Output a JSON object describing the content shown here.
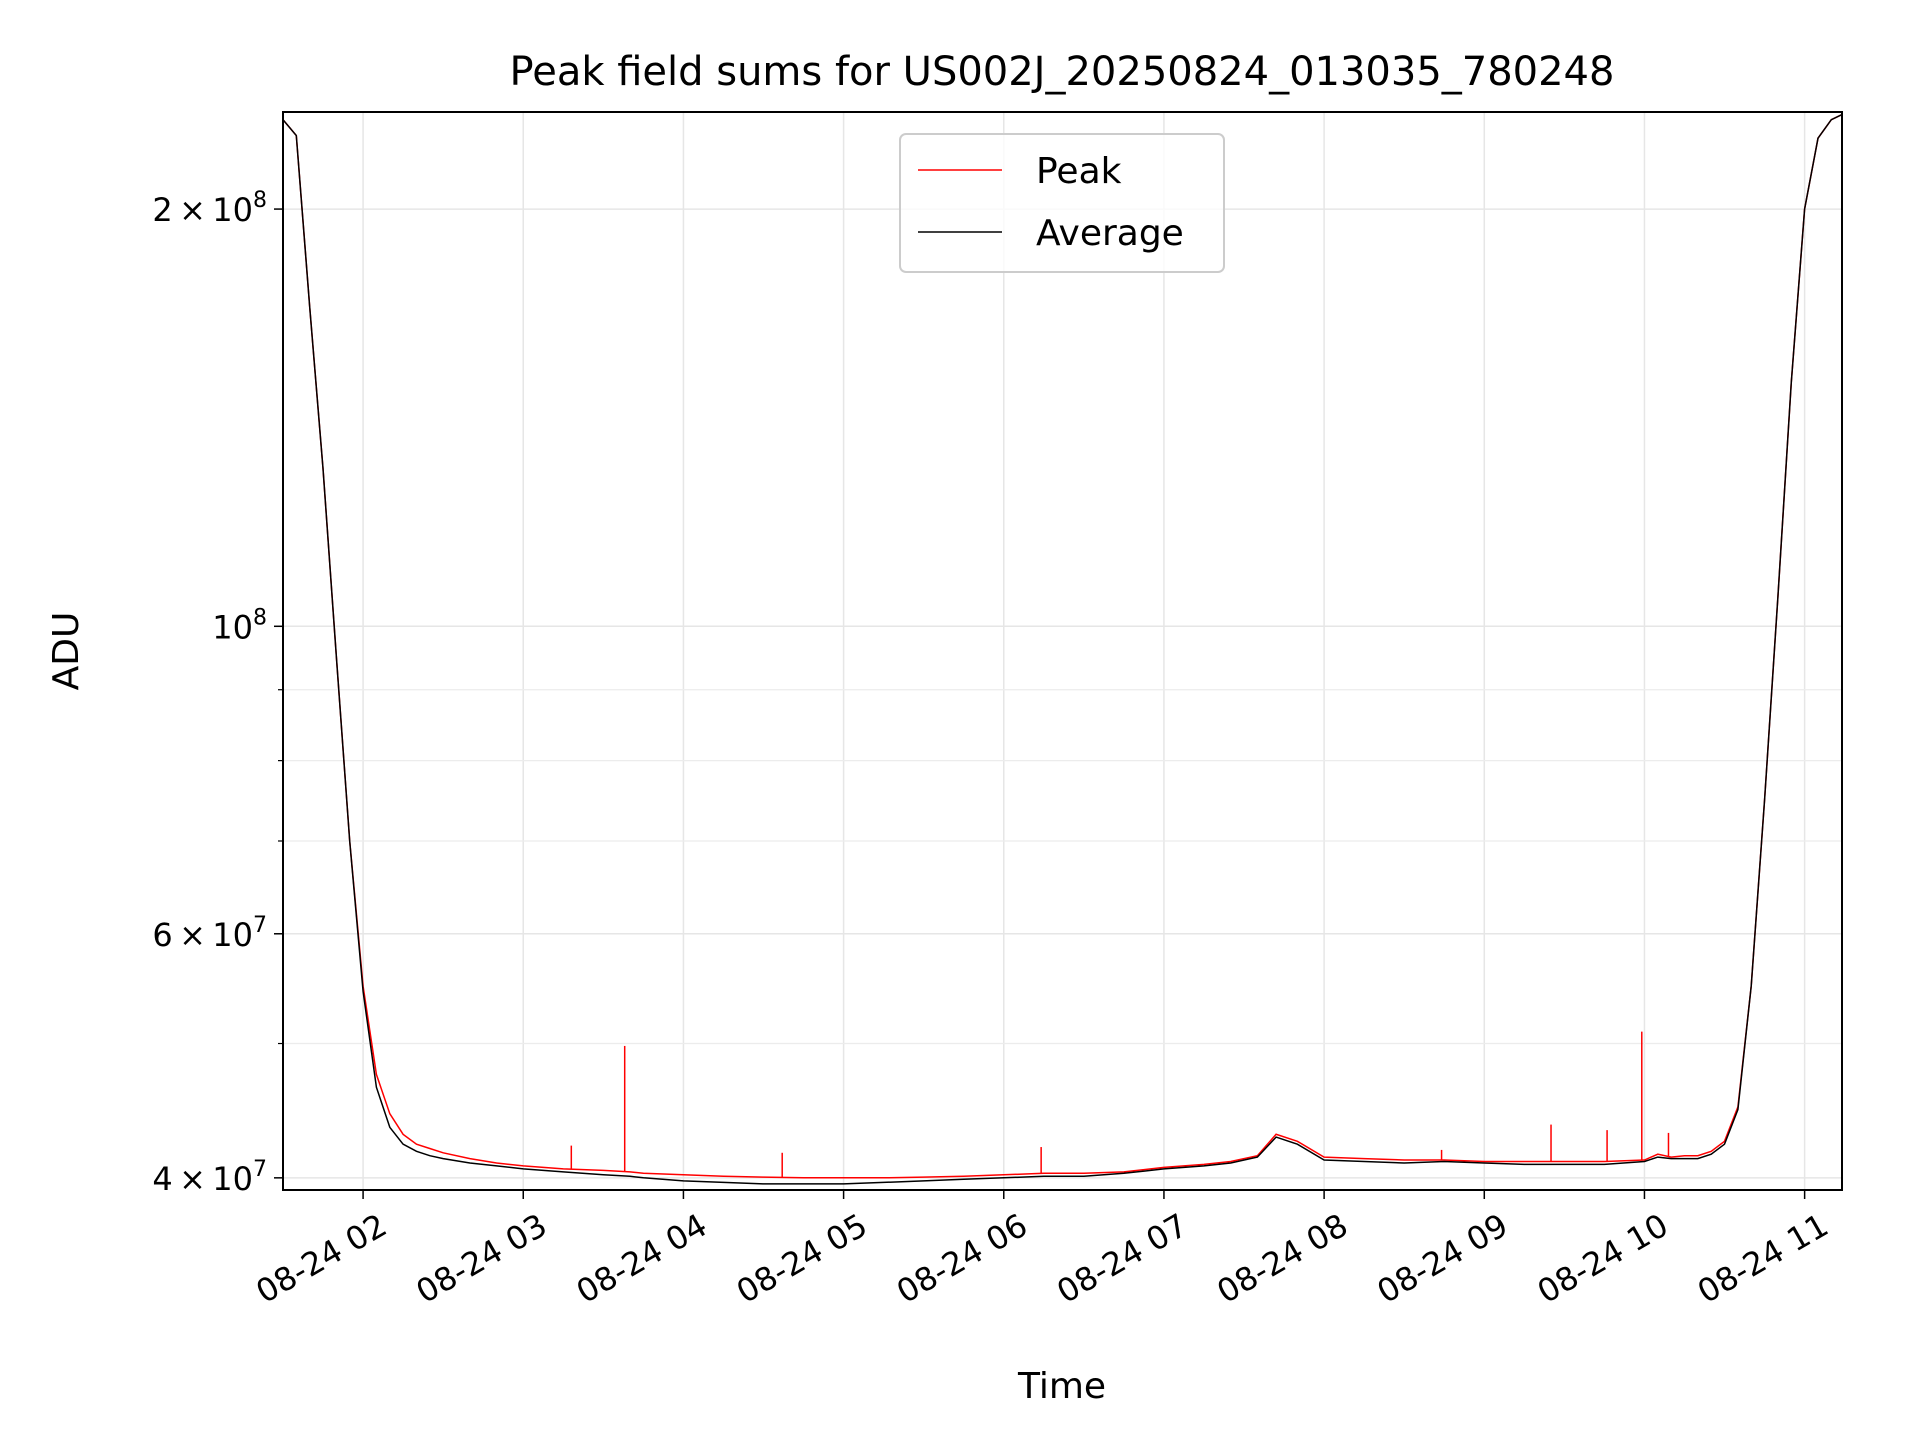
{
  "chart_data": {
    "type": "line",
    "title": "Peak field sums for US002J_20250824_013035_780248",
    "xlabel": "Time",
    "ylabel": "ADU",
    "y_scale": "log",
    "ylim": [
      39200000,
      235000000
    ],
    "xlim": [
      "2025-08-24 01:30",
      "2025-08-24 11:14"
    ],
    "grid": true,
    "legend_position": "upper center",
    "x_tick_labels": [
      "08-24 02",
      "08-24 03",
      "08-24 04",
      "08-24 05",
      "08-24 06",
      "08-24 07",
      "08-24 08",
      "08-24 09",
      "08-24 10",
      "08-24 11"
    ],
    "x_tick_values": [
      "2025-08-24 02:00",
      "2025-08-24 03:00",
      "2025-08-24 04:00",
      "2025-08-24 05:00",
      "2025-08-24 06:00",
      "2025-08-24 07:00",
      "2025-08-24 08:00",
      "2025-08-24 09:00",
      "2025-08-24 10:00",
      "2025-08-24 11:00"
    ],
    "y_ticks": [
      {
        "value": 200000000,
        "mantissa": "2",
        "times": "×",
        "base": "10",
        "exp": "8"
      },
      {
        "value": 100000000,
        "mantissa": "",
        "times": "",
        "base": "10",
        "exp": "8"
      },
      {
        "value": 60000000,
        "mantissa": "6",
        "times": "×",
        "base": "10",
        "exp": "7"
      },
      {
        "value": 40000000,
        "mantissa": "4",
        "times": "×",
        "base": "10",
        "exp": "7"
      }
    ],
    "y_minor_ticks": [
      50000000,
      70000000,
      80000000,
      90000000
    ],
    "series": [
      {
        "name": "Peak",
        "color": "#ff0000",
        "x": [
          "2025-08-24 01:30",
          "2025-08-24 01:35",
          "2025-08-24 01:40",
          "2025-08-24 01:45",
          "2025-08-24 01:50",
          "2025-08-24 01:55",
          "2025-08-24 02:00",
          "2025-08-24 02:05",
          "2025-08-24 02:10",
          "2025-08-24 02:15",
          "2025-08-24 02:20",
          "2025-08-24 02:25",
          "2025-08-24 02:30",
          "2025-08-24 02:40",
          "2025-08-24 02:50",
          "2025-08-24 03:00",
          "2025-08-24 03:15",
          "2025-08-24 03:30",
          "2025-08-24 03:40",
          "2025-08-24 03:45",
          "2025-08-24 04:00",
          "2025-08-24 04:15",
          "2025-08-24 04:30",
          "2025-08-24 04:45",
          "2025-08-24 05:00",
          "2025-08-24 05:15",
          "2025-08-24 05:30",
          "2025-08-24 05:45",
          "2025-08-24 06:00",
          "2025-08-24 06:15",
          "2025-08-24 06:30",
          "2025-08-24 06:45",
          "2025-08-24 07:00",
          "2025-08-24 07:15",
          "2025-08-24 07:25",
          "2025-08-24 07:35",
          "2025-08-24 07:42",
          "2025-08-24 07:50",
          "2025-08-24 08:00",
          "2025-08-24 08:15",
          "2025-08-24 08:30",
          "2025-08-24 08:45",
          "2025-08-24 09:00",
          "2025-08-24 09:15",
          "2025-08-24 09:30",
          "2025-08-24 09:45",
          "2025-08-24 10:00",
          "2025-08-24 10:05",
          "2025-08-24 10:10",
          "2025-08-24 10:15",
          "2025-08-24 10:20",
          "2025-08-24 10:25",
          "2025-08-24 10:30",
          "2025-08-24 10:35",
          "2025-08-24 10:40",
          "2025-08-24 10:45",
          "2025-08-24 10:50",
          "2025-08-24 10:55",
          "2025-08-24 11:00",
          "2025-08-24 11:05",
          "2025-08-24 11:10",
          "2025-08-24 11:14"
        ],
        "values": [
          232000000,
          226000000,
          170000000,
          130000000,
          95000000,
          70000000,
          55000000,
          47500000,
          44500000,
          43000000,
          42300000,
          42000000,
          41700000,
          41300000,
          41000000,
          40800000,
          40600000,
          40500000,
          40400000,
          40300000,
          40200000,
          40100000,
          40050000,
          40000000,
          40000000,
          40000000,
          40050000,
          40100000,
          40200000,
          40300000,
          40300000,
          40400000,
          40700000,
          40900000,
          41100000,
          41500000,
          43000000,
          42500000,
          41400000,
          41300000,
          41200000,
          41200000,
          41100000,
          41100000,
          41100000,
          41100000,
          41200000,
          41600000,
          41400000,
          41500000,
          41500000,
          41800000,
          42500000,
          45000000,
          55000000,
          75000000,
          105000000,
          150000000,
          200000000,
          225000000,
          232000000,
          234000000
        ]
      },
      {
        "name": "Average",
        "color": "#000000",
        "x": [
          "2025-08-24 01:30",
          "2025-08-24 01:35",
          "2025-08-24 01:40",
          "2025-08-24 01:45",
          "2025-08-24 01:50",
          "2025-08-24 01:55",
          "2025-08-24 02:00",
          "2025-08-24 02:05",
          "2025-08-24 02:10",
          "2025-08-24 02:15",
          "2025-08-24 02:20",
          "2025-08-24 02:25",
          "2025-08-24 02:30",
          "2025-08-24 02:40",
          "2025-08-24 02:50",
          "2025-08-24 03:00",
          "2025-08-24 03:15",
          "2025-08-24 03:30",
          "2025-08-24 03:40",
          "2025-08-24 03:45",
          "2025-08-24 04:00",
          "2025-08-24 04:15",
          "2025-08-24 04:30",
          "2025-08-24 04:45",
          "2025-08-24 05:00",
          "2025-08-24 05:15",
          "2025-08-24 05:30",
          "2025-08-24 05:45",
          "2025-08-24 06:00",
          "2025-08-24 06:15",
          "2025-08-24 06:30",
          "2025-08-24 06:45",
          "2025-08-24 07:00",
          "2025-08-24 07:15",
          "2025-08-24 07:25",
          "2025-08-24 07:35",
          "2025-08-24 07:42",
          "2025-08-24 07:50",
          "2025-08-24 08:00",
          "2025-08-24 08:15",
          "2025-08-24 08:30",
          "2025-08-24 08:45",
          "2025-08-24 09:00",
          "2025-08-24 09:15",
          "2025-08-24 09:30",
          "2025-08-24 09:45",
          "2025-08-24 10:00",
          "2025-08-24 10:05",
          "2025-08-24 10:10",
          "2025-08-24 10:15",
          "2025-08-24 10:20",
          "2025-08-24 10:25",
          "2025-08-24 10:30",
          "2025-08-24 10:35",
          "2025-08-24 10:40",
          "2025-08-24 10:45",
          "2025-08-24 10:50",
          "2025-08-24 10:55",
          "2025-08-24 11:00",
          "2025-08-24 11:05",
          "2025-08-24 11:10",
          "2025-08-24 11:14"
        ],
        "values": [
          232000000,
          226000000,
          170000000,
          130000000,
          95000000,
          70000000,
          54500000,
          46500000,
          43500000,
          42300000,
          41800000,
          41500000,
          41300000,
          41000000,
          40800000,
          40600000,
          40400000,
          40200000,
          40100000,
          40000000,
          39800000,
          39700000,
          39600000,
          39600000,
          39600000,
          39700000,
          39800000,
          39900000,
          40000000,
          40100000,
          40100000,
          40300000,
          40600000,
          40800000,
          41000000,
          41400000,
          42800000,
          42300000,
          41200000,
          41100000,
          41000000,
          41100000,
          41000000,
          40900000,
          40900000,
          40900000,
          41100000,
          41400000,
          41300000,
          41300000,
          41300000,
          41600000,
          42300000,
          44800000,
          55000000,
          75000000,
          105000000,
          150000000,
          200000000,
          225000000,
          232000000,
          234000000
        ]
      }
    ],
    "spikes": [
      {
        "x": "2025-08-24 03:38",
        "value": 49800000
      },
      {
        "x": "2025-08-24 09:59",
        "value": 51000000
      },
      {
        "x": "2025-08-24 09:25",
        "value": 43700000
      },
      {
        "x": "2025-08-24 09:46",
        "value": 43300000
      },
      {
        "x": "2025-08-24 06:14",
        "value": 42100000
      },
      {
        "x": "2025-08-24 04:37",
        "value": 41700000
      },
      {
        "x": "2025-08-24 03:18",
        "value": 42200000
      },
      {
        "x": "2025-08-24 10:09",
        "value": 43100000
      },
      {
        "x": "2025-08-24 08:44",
        "value": 41900000
      }
    ]
  }
}
